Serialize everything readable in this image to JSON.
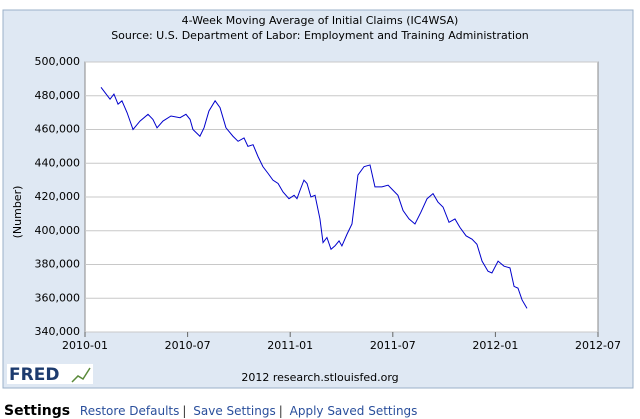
{
  "chart_data": {
    "type": "line",
    "title": "4-Week Moving Average of Initial Claims (IC4WSA)",
    "subtitle": "Source: U.S. Department of Labor: Employment and Training Administration",
    "y_label": "(Number)",
    "source_note": "2012 research.stlouisfed.org",
    "logo": "FRED",
    "x": [
      2010.078,
      2010.122,
      2010.141,
      2010.161,
      2010.18,
      2010.205,
      2010.234,
      2010.268,
      2010.307,
      2010.331,
      2010.351,
      2010.38,
      2010.419,
      2010.463,
      2010.492,
      2010.512,
      2010.526,
      2010.56,
      2010.58,
      2010.604,
      2010.634,
      2010.658,
      2010.687,
      2010.721,
      2010.746,
      2010.775,
      2010.794,
      2010.819,
      2010.843,
      2010.867,
      2010.892,
      2010.916,
      2010.941,
      2010.965,
      2010.994,
      2011.019,
      2011.033,
      2011.048,
      2011.067,
      2011.082,
      2011.101,
      2011.121,
      2011.145,
      2011.16,
      2011.179,
      2011.199,
      2011.218,
      2011.238,
      2011.252,
      2011.277,
      2011.301,
      2011.33,
      2011.36,
      2011.389,
      2011.413,
      2011.447,
      2011.477,
      2011.501,
      2011.525,
      2011.55,
      2011.579,
      2011.608,
      2011.637,
      2011.667,
      2011.696,
      2011.72,
      2011.745,
      2011.774,
      2011.803,
      2011.827,
      2011.857,
      2011.886,
      2011.91,
      2011.935,
      2011.964,
      2011.983,
      2012.013,
      2012.042,
      2012.071,
      2012.091,
      2012.11,
      2012.13,
      2012.154
    ],
    "series": [
      {
        "name": "IC4WSA",
        "color": "#0000cc",
        "values": [
          485000,
          478000,
          481000,
          475000,
          477000,
          470000,
          460000,
          465000,
          469000,
          466000,
          461000,
          465000,
          468000,
          467000,
          469000,
          466000,
          460000,
          456000,
          461000,
          471000,
          477000,
          473000,
          461000,
          456000,
          453000,
          455000,
          450000,
          451000,
          444000,
          438000,
          434000,
          430000,
          428000,
          423000,
          419000,
          421000,
          419000,
          424000,
          430000,
          428000,
          420000,
          421000,
          407000,
          393000,
          396000,
          389000,
          391000,
          394000,
          391000,
          398000,
          404000,
          433000,
          438000,
          439000,
          426000,
          426000,
          427000,
          424000,
          421000,
          412000,
          407000,
          404000,
          411000,
          419000,
          422000,
          417000,
          414000,
          405000,
          407000,
          402000,
          397000,
          395000,
          392000,
          382000,
          376000,
          375000,
          382000,
          379000,
          378000,
          367000,
          366000,
          359000,
          354000
        ]
      }
    ],
    "xlim": [
      2010.0,
      2012.5
    ],
    "xticks": [
      {
        "value": 2010.0,
        "label": "2010-01"
      },
      {
        "value": 2010.5,
        "label": "2010-07"
      },
      {
        "value": 2011.0,
        "label": "2011-01"
      },
      {
        "value": 2011.5,
        "label": "2011-07"
      },
      {
        "value": 2012.0,
        "label": "2012-01"
      },
      {
        "value": 2012.5,
        "label": "2012-07"
      }
    ],
    "ylim": [
      340000,
      500000
    ],
    "yticks": [
      {
        "value": 340000,
        "label": "340,000"
      },
      {
        "value": 360000,
        "label": "360,000"
      },
      {
        "value": 380000,
        "label": "380,000"
      },
      {
        "value": 400000,
        "label": "400,000"
      },
      {
        "value": 420000,
        "label": "420,000"
      },
      {
        "value": 440000,
        "label": "440,000"
      },
      {
        "value": 460000,
        "label": "460,000"
      },
      {
        "value": 480000,
        "label": "480,000"
      },
      {
        "value": 500000,
        "label": "500,000"
      }
    ],
    "grid": true
  },
  "settings_bar": {
    "heading": "Settings",
    "links": [
      "Restore Defaults",
      "Save Settings",
      "Apply Saved Settings"
    ]
  }
}
